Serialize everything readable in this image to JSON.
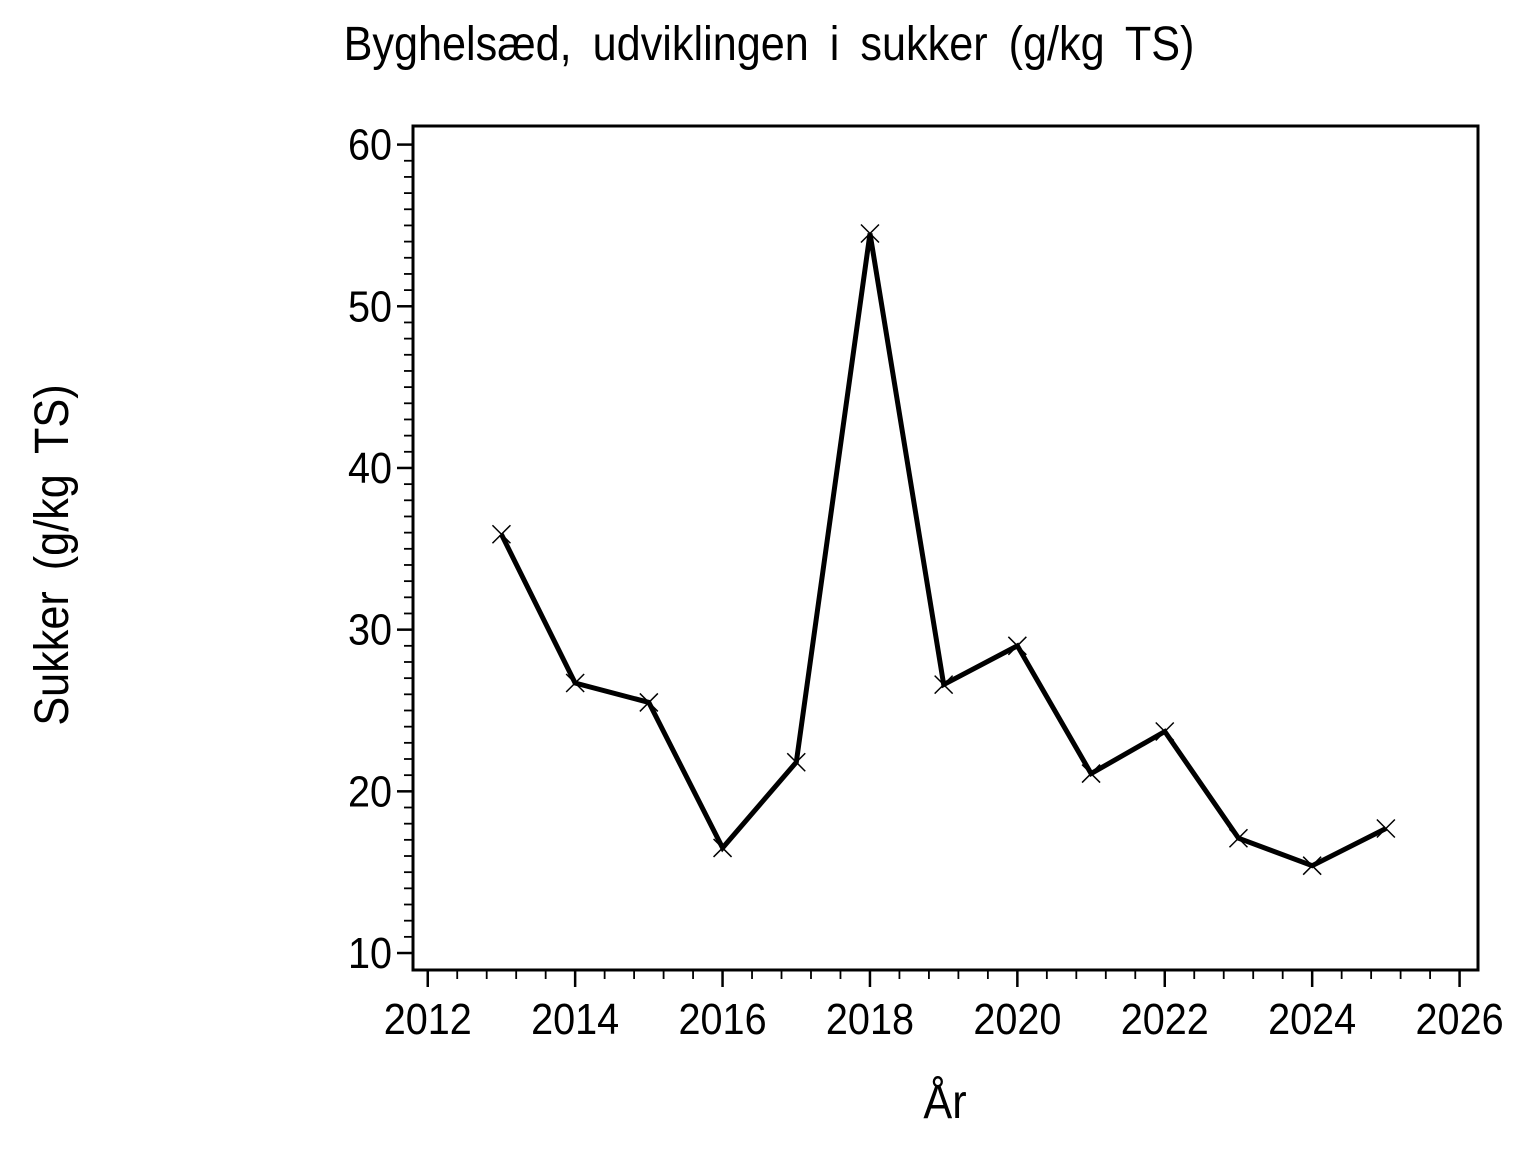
{
  "page": {
    "background": "#ffffff",
    "foreground": "#000000"
  },
  "chart_data": {
    "type": "line",
    "title": "Byghelsæd, udviklingen i sukker (g/kg TS)",
    "xlabel": "År",
    "ylabel": "Sukker (g/kg TS)",
    "x": [
      2013,
      2014,
      2015,
      2016,
      2017,
      2018,
      2019,
      2020,
      2021,
      2022,
      2023,
      2024,
      2025
    ],
    "y": [
      35.9,
      26.7,
      25.5,
      16.5,
      21.8,
      54.5,
      26.6,
      29.0,
      21.1,
      23.7,
      17.1,
      15.4,
      17.7
    ],
    "xlim": [
      2011.8,
      2026.25
    ],
    "ylim": [
      8.95,
      61.15
    ],
    "x_major_ticks": [
      2012,
      2014,
      2016,
      2018,
      2020,
      2022,
      2024,
      2026
    ],
    "x_minor_interval": 0.4,
    "y_major_ticks": [
      10,
      20,
      30,
      40,
      50,
      60
    ],
    "y_minor_interval": 1,
    "marker": "x-cross",
    "line_color": "#000000",
    "marker_color": "#000000",
    "axis_color": "#000000",
    "grid": false,
    "legend_position": "none"
  }
}
